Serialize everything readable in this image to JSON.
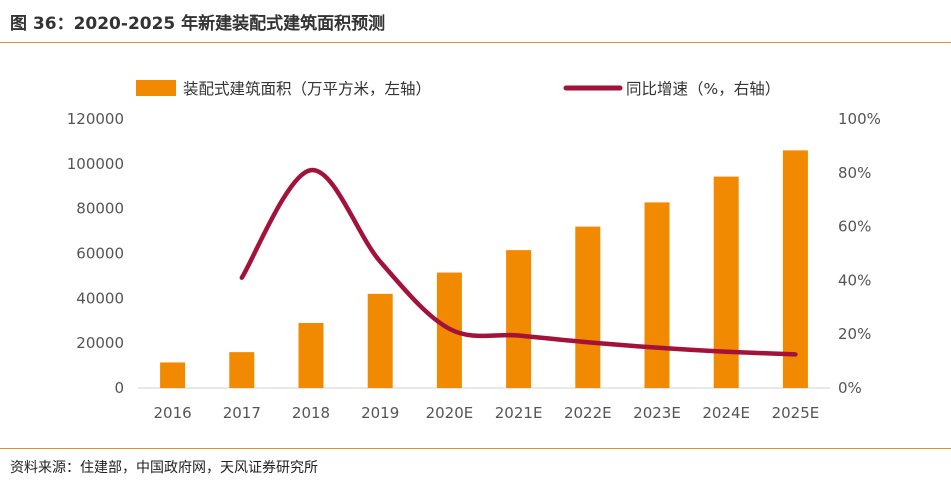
{
  "header": {
    "title": "图 36：2020-2025 年新建装配式建筑面积预测"
  },
  "footer": {
    "source": "资料来源：住建部，中国政府网，天风证券研究所"
  },
  "colors": {
    "bar": "#f18a00",
    "line": "#a3123a",
    "rule": "#e0912a"
  },
  "chart_data": {
    "type": "bar",
    "categories": [
      "2016",
      "2017",
      "2018",
      "2019",
      "2020E",
      "2021E",
      "2022E",
      "2023E",
      "2024E",
      "2025E"
    ],
    "series": [
      {
        "name": "装配式建筑面积（万平方米，左轴）",
        "type": "bar",
        "axis": "left",
        "values": [
          11400,
          16000,
          29000,
          42000,
          51500,
          61500,
          72000,
          82800,
          94300,
          106000
        ]
      },
      {
        "name": "同比增速（%，右轴）",
        "type": "line",
        "axis": "right",
        "values": [
          null,
          0.41,
          0.81,
          0.47,
          0.22,
          0.195,
          0.17,
          0.15,
          0.135,
          0.125
        ]
      }
    ],
    "y_left": {
      "min": 0,
      "max": 120000,
      "ticks": [
        "0",
        "20000",
        "40000",
        "60000",
        "80000",
        "100000",
        "120000"
      ]
    },
    "y_right": {
      "min": 0,
      "max": 1.0,
      "ticks": [
        "0%",
        "20%",
        "40%",
        "60%",
        "80%",
        "100%"
      ]
    },
    "legend": "top",
    "grid": false
  }
}
